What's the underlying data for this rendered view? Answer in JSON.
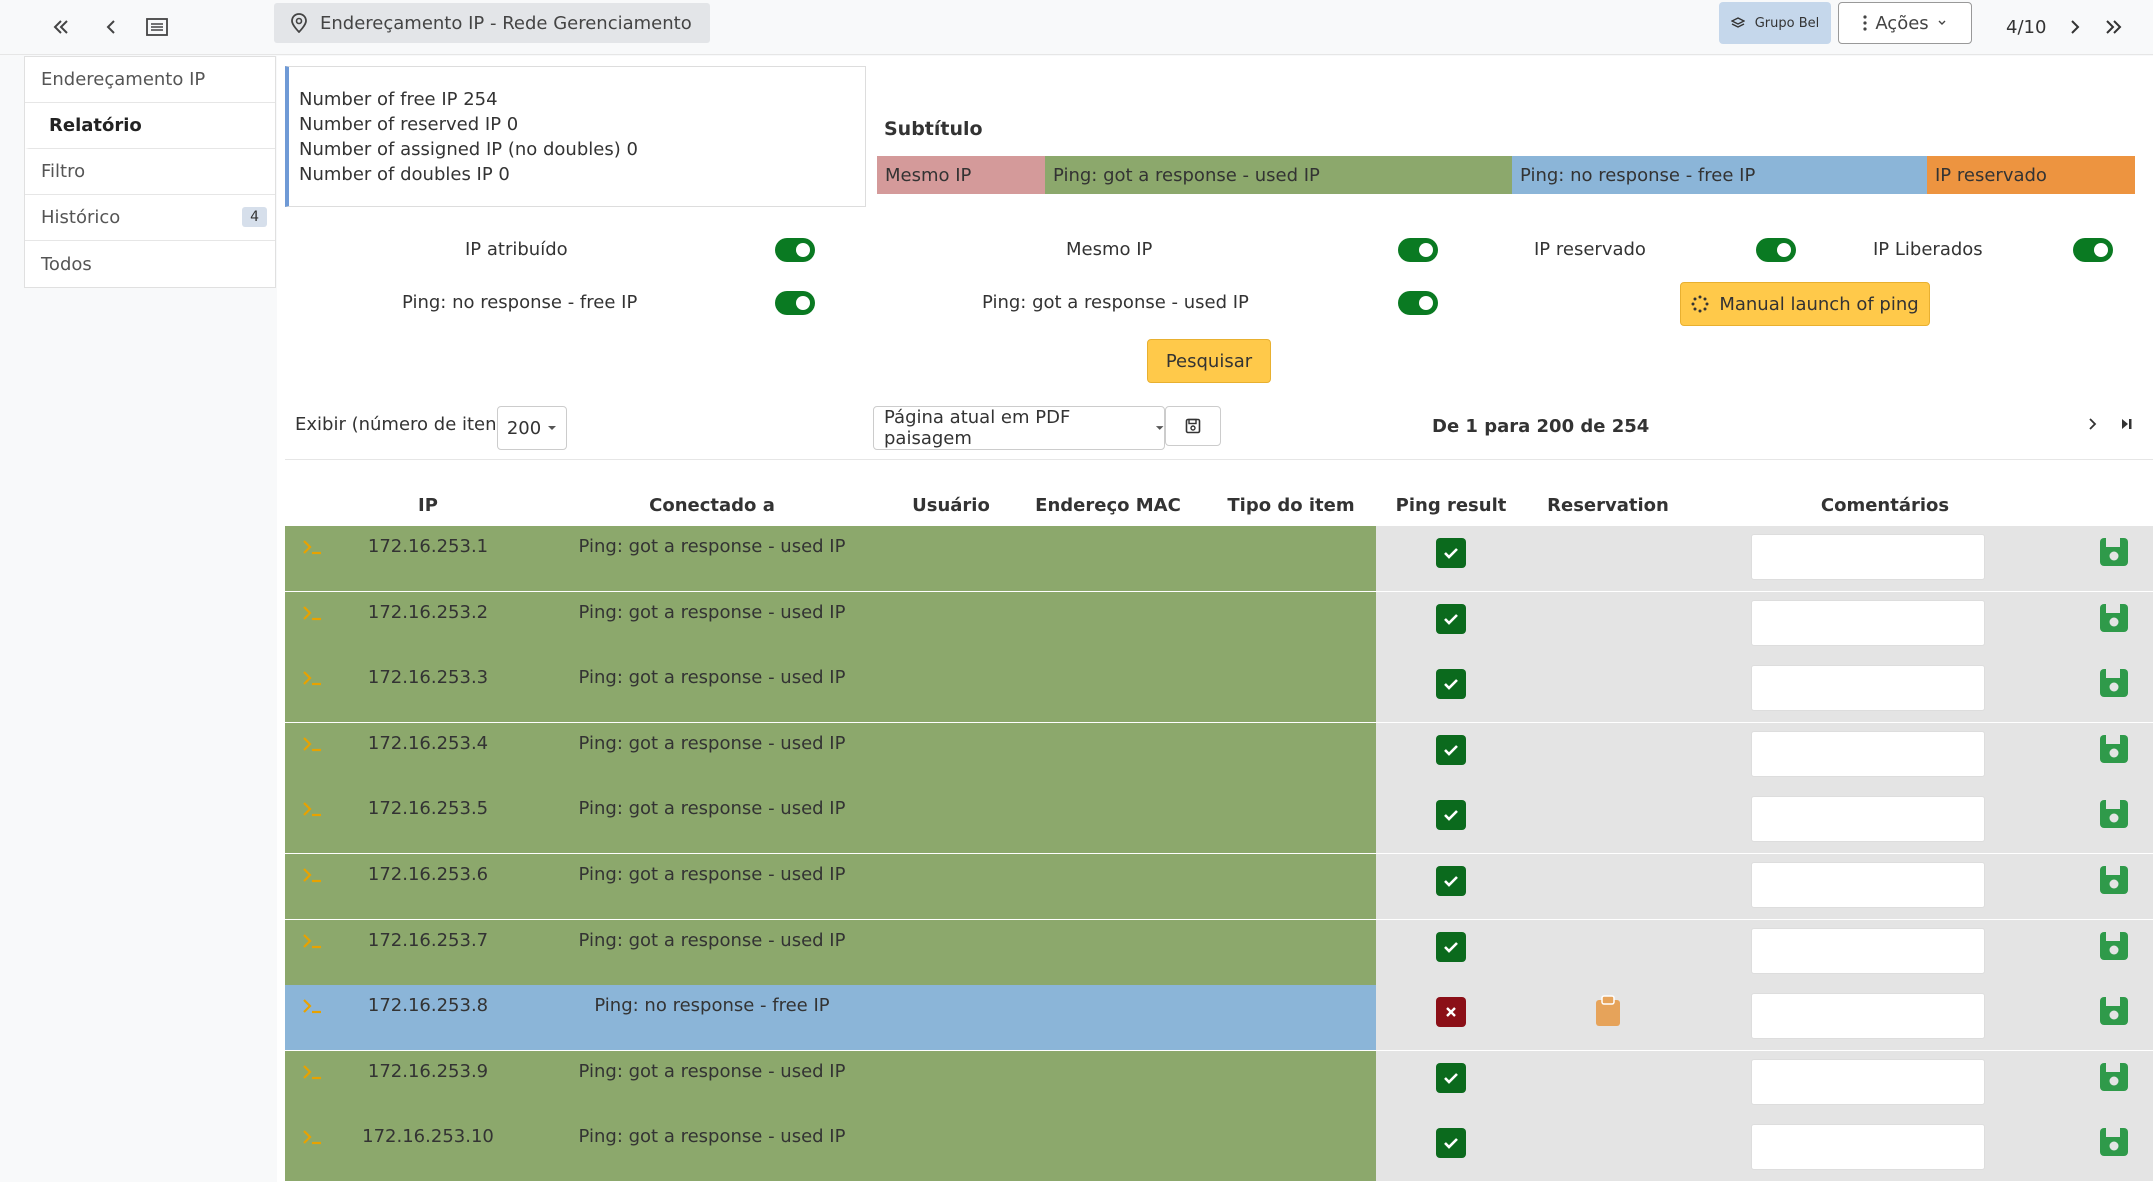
{
  "topbar": {
    "breadcrumb": "Endereçamento IP - Rede Gerenciamento",
    "group_button": "Grupo Bel",
    "actions_button": "Ações",
    "record_position": "4/10"
  },
  "sidebar": {
    "items": [
      {
        "label": "Endereçamento IP"
      },
      {
        "label": "Relatório"
      },
      {
        "label": "Filtro"
      },
      {
        "label": "Histórico",
        "badge": "4"
      },
      {
        "label": "Todos"
      }
    ]
  },
  "stats": {
    "free": "Number of free IP 254",
    "reserved": "Number of reserved IP 0",
    "assigned": "Number of assigned IP (no doubles) 0",
    "doubles": "Number of doubles IP 0"
  },
  "legend": {
    "title": "Subtítulo",
    "items": [
      {
        "label": "Mesmo IP",
        "color": "#d49a9a"
      },
      {
        "label": "Ping: got a response - used IP",
        "color": "#8ca86c"
      },
      {
        "label": "Ping: no response - free IP",
        "color": "#8bb5d8"
      },
      {
        "label": "IP reservado",
        "color": "#ed9440"
      }
    ]
  },
  "filters": {
    "ip_atribuido": "IP atribuído",
    "mesmo_ip": "Mesmo IP",
    "ip_reservado": "IP reservado",
    "ip_liberados": "IP Liberados",
    "ping_no_response": "Ping: no response - free IP",
    "ping_response": "Ping: got a response - used IP",
    "manual_ping": "Manual launch of ping",
    "search": "Pesquisar"
  },
  "listing": {
    "show_label": "Exibir (número de itens)",
    "page_size": "200",
    "export_option": "Página atual em PDF paisagem",
    "page_info": "De 1 para 200 de 254"
  },
  "table": {
    "headers": {
      "ip": "IP",
      "connected": "Conectado a",
      "user": "Usuário",
      "mac": "Endereço MAC",
      "type": "Tipo do item",
      "ping": "Ping result",
      "reservation": "Reservation",
      "comments": "Comentários"
    },
    "rows": [
      {
        "ip": "172.16.253.1",
        "status": "Ping: got a response - used IP"
      },
      {
        "ip": "172.16.253.2",
        "status": "Ping: got a response - used IP"
      },
      {
        "ip": "172.16.253.3",
        "status": "Ping: got a response - used IP"
      },
      {
        "ip": "172.16.253.4",
        "status": "Ping: got a response - used IP"
      },
      {
        "ip": "172.16.253.5",
        "status": "Ping: got a response - used IP"
      },
      {
        "ip": "172.16.253.6",
        "status": "Ping: got a response - used IP"
      },
      {
        "ip": "172.16.253.7",
        "status": "Ping: got a response - used IP"
      },
      {
        "ip": "172.16.253.8",
        "status": "Ping: no response - free IP"
      },
      {
        "ip": "172.16.253.9",
        "status": "Ping: got a response - used IP"
      },
      {
        "ip": "172.16.253.10",
        "status": "Ping: got a response - used IP"
      }
    ]
  }
}
